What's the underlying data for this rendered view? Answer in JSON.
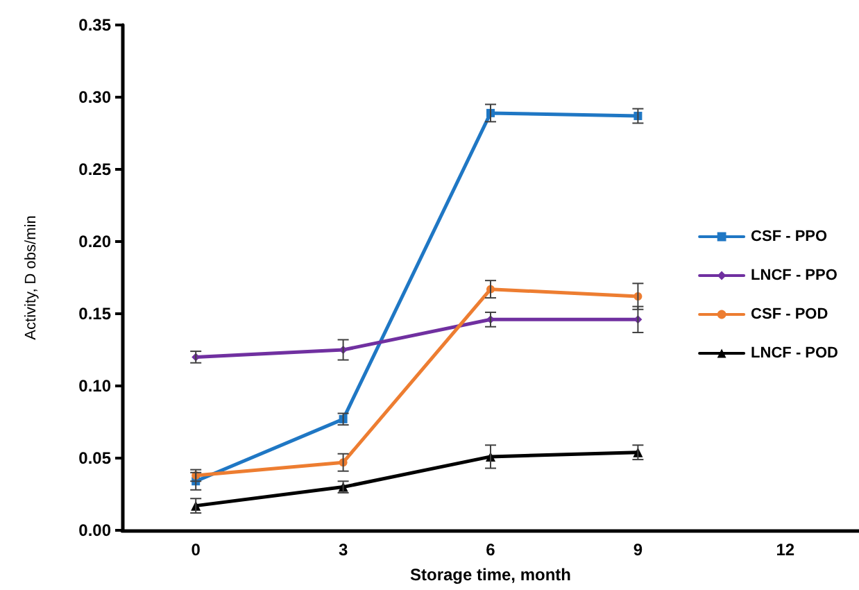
{
  "chart_data": {
    "type": "line",
    "xlabel": "Storage time, month",
    "ylabel": "Activity, D obs/min",
    "x": [
      0,
      3,
      6,
      9
    ],
    "xlim": [
      -1.5,
      13.5
    ],
    "xticks": [
      0,
      3,
      6,
      9,
      12
    ],
    "ylim": [
      0,
      0.35
    ],
    "yticks": [
      {
        "value": 0,
        "label": "0.00"
      },
      {
        "value": 0.05,
        "label": "0.05"
      },
      {
        "value": 0.1,
        "label": "0.10"
      },
      {
        "value": 0.15,
        "label": "0.15"
      },
      {
        "value": 0.2,
        "label": "0.20"
      },
      {
        "value": 0.25,
        "label": "0.25"
      },
      {
        "value": 0.3,
        "label": "0.30"
      },
      {
        "value": 0.35,
        "label": "0.35"
      }
    ],
    "legend": "right",
    "line_style": "solid",
    "series": [
      {
        "name": "CSF - PPO",
        "color": "#1f77c4",
        "marker": "square",
        "values": [
          0.034,
          0.077,
          0.289,
          0.287
        ],
        "errors": [
          0.006,
          0.004,
          0.006,
          0.005
        ]
      },
      {
        "name": "LNCF - PPO",
        "color": "#7030a0",
        "marker": "diamond",
        "values": [
          0.12,
          0.125,
          0.146,
          0.146
        ],
        "errors": [
          0.004,
          0.007,
          0.005,
          0.009
        ]
      },
      {
        "name": "CSF - POD",
        "color": "#ed7d31",
        "marker": "circle",
        "values": [
          0.038,
          0.047,
          0.167,
          0.162
        ],
        "errors": [
          0.004,
          0.006,
          0.006,
          0.009
        ]
      },
      {
        "name": "LNCF - POD",
        "color": "#000000",
        "marker": "triangle",
        "values": [
          0.017,
          0.03,
          0.051,
          0.054
        ],
        "errors": [
          0.005,
          0.004,
          0.008,
          0.005
        ]
      }
    ]
  }
}
